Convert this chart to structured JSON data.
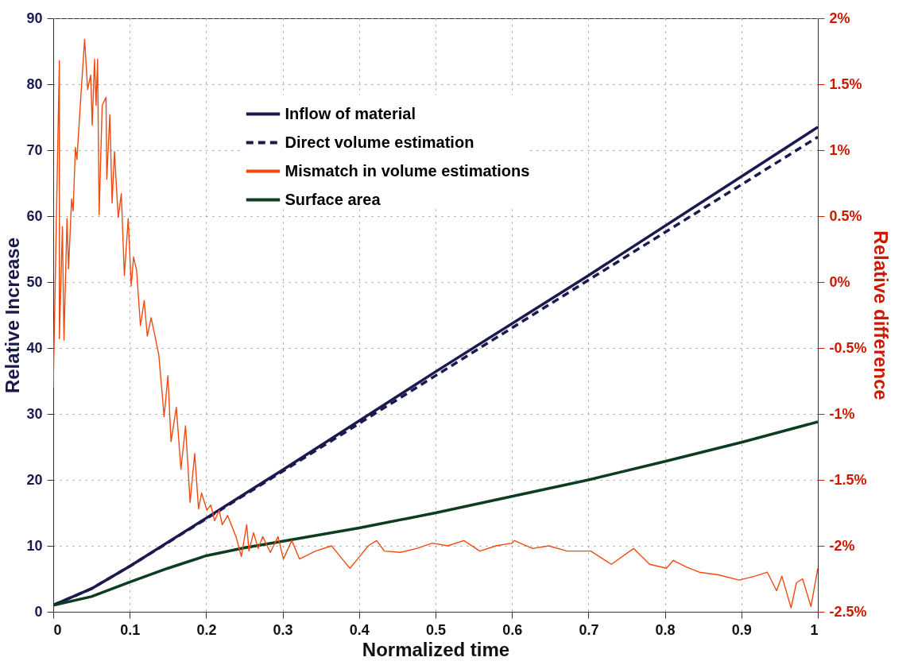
{
  "chart_data": {
    "type": "line",
    "xlabel": "Normalized time",
    "ylabel": "Relative Increase",
    "y2label": "Relative difference",
    "xlim": [
      0,
      1
    ],
    "xticks": [
      0,
      0.1,
      0.2,
      0.3,
      0.4,
      0.5,
      0.6,
      0.7,
      0.8,
      0.9,
      1
    ],
    "ylim": [
      0,
      90
    ],
    "yticks": [
      0,
      10,
      20,
      30,
      40,
      50,
      60,
      70,
      80,
      90
    ],
    "y2lim": [
      -2.5,
      2
    ],
    "y2ticks": [
      {
        "value": -2.5,
        "label": "-2.5%"
      },
      {
        "value": -2,
        "label": "-2%"
      },
      {
        "value": -1.5,
        "label": "-1.5%"
      },
      {
        "value": -1,
        "label": "-1%"
      },
      {
        "value": -0.5,
        "label": "-0.5%"
      },
      {
        "value": 0,
        "label": "0%"
      },
      {
        "value": 0.5,
        "label": "0.5%"
      },
      {
        "value": 1,
        "label": "1%"
      },
      {
        "value": 1.5,
        "label": "1.5%"
      },
      {
        "value": 2,
        "label": "2%"
      }
    ],
    "grid": true,
    "legend": "top",
    "series": [
      {
        "name": "Inflow of material",
        "color": "#1a1a4e",
        "line_style": "solid",
        "x": [
          0,
          0.05,
          0.1,
          0.2,
          0.3,
          0.5,
          0.7,
          1
        ],
        "values": [
          1,
          3.5,
          6.9,
          14.2,
          21.5,
          36.4,
          51,
          73.5
        ]
      },
      {
        "name": "Direct volume estimation",
        "color": "#1a1a4e",
        "line_style": "dashed",
        "x": [
          0,
          0.05,
          0.1,
          0.2,
          0.3,
          0.5,
          0.7,
          1
        ],
        "values": [
          1,
          3.5,
          6.9,
          14.1,
          21.3,
          35.8,
          50.3,
          72
        ]
      },
      {
        "name": "Mismatch in volume estimations",
        "color": "#f04a10",
        "line_style": "solid",
        "axis": "y2",
        "x": [
          0,
          0.008,
          0.008,
          0.012,
          0.014,
          0.018,
          0.02,
          0.024,
          0.026,
          0.029,
          0.031,
          0.036,
          0.041,
          0.045,
          0.049,
          0.051,
          0.054,
          0.056,
          0.058,
          0.06,
          0.064,
          0.069,
          0.07,
          0.074,
          0.077,
          0.08,
          0.085,
          0.089,
          0.093,
          0.098,
          0.102,
          0.105,
          0.109,
          0.114,
          0.119,
          0.123,
          0.128,
          0.138,
          0.145,
          0.15,
          0.154,
          0.161,
          0.167,
          0.173,
          0.179,
          0.185,
          0.19,
          0.194,
          0.201,
          0.206,
          0.211,
          0.217,
          0.221,
          0.228,
          0.239,
          0.246,
          0.253,
          0.256,
          0.262,
          0.268,
          0.274,
          0.284,
          0.294,
          0.301,
          0.312,
          0.322,
          0.343,
          0.364,
          0.378,
          0.388,
          0.398,
          0.412,
          0.423,
          0.433,
          0.454,
          0.475,
          0.496,
          0.516,
          0.537,
          0.558,
          0.579,
          0.6,
          0.603,
          0.627,
          0.648,
          0.672,
          0.703,
          0.73,
          0.759,
          0.78,
          0.802,
          0.811,
          0.828,
          0.845,
          0.87,
          0.897,
          0.918,
          0.934,
          0.946,
          0.953,
          0.965,
          0.972,
          0.98,
          0.991,
          1
        ],
        "values": [
          -0.8,
          1.68,
          -0.43,
          0.42,
          -0.44,
          0.48,
          0.1,
          0.63,
          0.54,
          1.02,
          0.93,
          1.4,
          1.84,
          1.46,
          1.57,
          1.19,
          1.69,
          1.34,
          1.69,
          0.51,
          1.34,
          1.4,
          0.78,
          1.27,
          0.6,
          0.99,
          0.49,
          0.67,
          0.05,
          0.48,
          -0.03,
          0.19,
          0.09,
          -0.33,
          -0.14,
          -0.41,
          -0.27,
          -0.55,
          -1.02,
          -0.71,
          -1.21,
          -0.95,
          -1.42,
          -1.09,
          -1.67,
          -1.3,
          -1.72,
          -1.6,
          -1.73,
          -1.69,
          -1.81,
          -1.73,
          -1.84,
          -1.77,
          -1.93,
          -2.08,
          -1.84,
          -2.04,
          -1.9,
          -2.02,
          -1.93,
          -2.05,
          -1.93,
          -2.1,
          -1.96,
          -2.1,
          -2.04,
          -2,
          -2.1,
          -2.17,
          -2.1,
          -2,
          -1.96,
          -2.04,
          -2.05,
          -2.02,
          -1.98,
          -2,
          -1.96,
          -2.04,
          -2,
          -1.98,
          -1.96,
          -2.02,
          -2,
          -2.04,
          -2.04,
          -2.14,
          -2.02,
          -2.14,
          -2.17,
          -2.11,
          -2.16,
          -2.2,
          -2.22,
          -2.26,
          -2.23,
          -2.2,
          -2.34,
          -2.23,
          -2.47,
          -2.28,
          -2.25,
          -2.46,
          -2.17
        ]
      },
      {
        "name": "Surface area",
        "color": "#0d3d20",
        "line_style": "solid",
        "x": [
          0,
          0.05,
          0.1,
          0.15,
          0.2,
          0.25,
          0.3,
          0.4,
          0.5,
          0.6,
          0.7,
          0.8,
          0.9,
          1
        ],
        "values": [
          1,
          2.3,
          4.5,
          6.6,
          8.5,
          9.7,
          10.7,
          12.7,
          15,
          17.5,
          20,
          22.8,
          25.7,
          28.8
        ]
      }
    ]
  }
}
